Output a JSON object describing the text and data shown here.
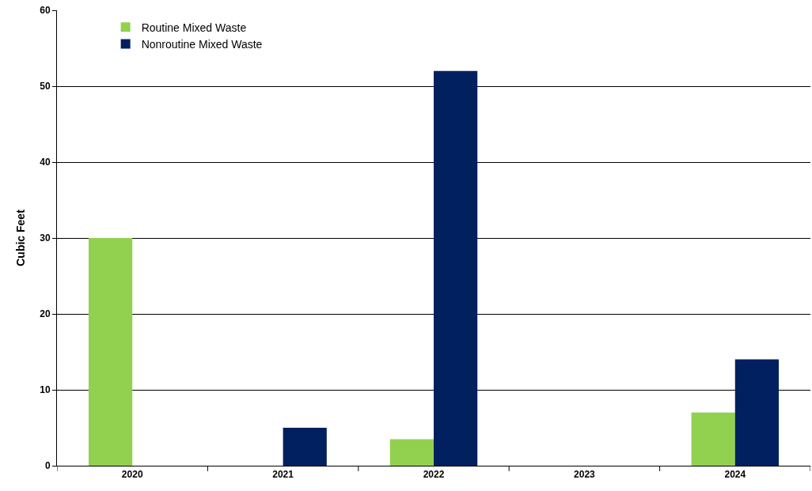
{
  "chart_data": {
    "type": "bar",
    "ylabel": "Cubic Feet",
    "categories": [
      "2020",
      "2021",
      "2022",
      "2023",
      "2024"
    ],
    "series": [
      {
        "name": "Routine Mixed Waste",
        "color": "#92d050",
        "values": [
          30,
          0,
          3.5,
          0,
          7
        ]
      },
      {
        "name": "Nonroutine Mixed Waste",
        "color": "#002060",
        "values": [
          0,
          5,
          52,
          0,
          14
        ]
      }
    ],
    "ylim": [
      0,
      60
    ],
    "yticks": [
      0,
      10,
      20,
      30,
      40,
      50,
      60
    ],
    "grid": "y",
    "legend": "top left"
  }
}
